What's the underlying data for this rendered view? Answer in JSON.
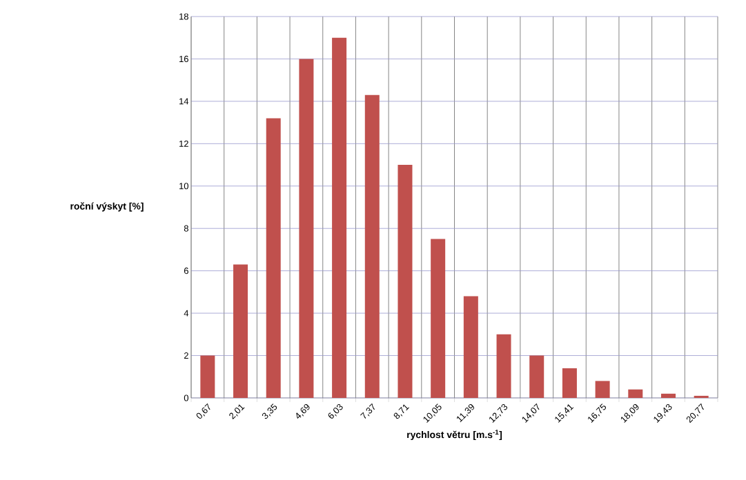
{
  "chart_data": {
    "type": "bar",
    "xlabel": "rychlost větru [m.s$^{-1}$]",
    "ylabel": "roční výskyt [%]",
    "categories": [
      "0,67",
      "2,01",
      "3,35",
      "4,69",
      "6,03",
      "7,37",
      "8,71",
      "10,05",
      "11,39",
      "12,73",
      "14,07",
      "15,41",
      "16,75",
      "18,09",
      "19,43",
      "20,77"
    ],
    "values": [
      2,
      6.3,
      13.2,
      16,
      17,
      14.3,
      11,
      7.5,
      4.8,
      3,
      2,
      1.4,
      0.8,
      0.4,
      0.2,
      0.1
    ],
    "color": "#c0504d",
    "ylim": [
      0,
      18
    ],
    "yticks": [
      0,
      2,
      4,
      6,
      8,
      10,
      12,
      14,
      16,
      18
    ],
    "grid": true
  }
}
